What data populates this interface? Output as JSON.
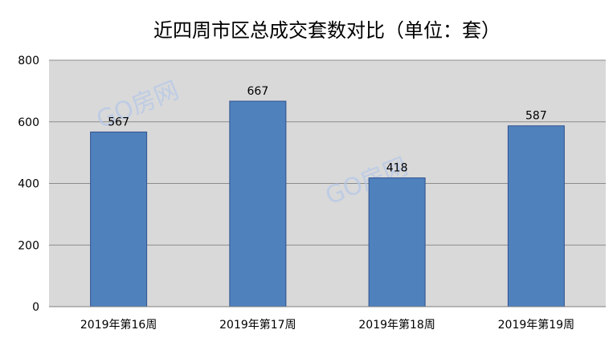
{
  "chart_data": {
    "type": "bar",
    "title": "近四周市区总成交套数对比（单位：套）",
    "categories": [
      "2019年第16周",
      "2019年第17周",
      "2019年第18周",
      "2019年第19周"
    ],
    "values": [
      567,
      667,
      418,
      587
    ],
    "ylim": [
      0,
      800
    ],
    "yticks": [
      0,
      200,
      400,
      600,
      800
    ],
    "grid": true,
    "legend": "none",
    "watermark": "GO房网",
    "colors": {
      "bar": "#4f81bd",
      "bar_stroke": "#2f528f",
      "plot_background": "#d9d9d9",
      "gridline": "#8c8c8c",
      "watermark": "#b4c7e7"
    }
  }
}
